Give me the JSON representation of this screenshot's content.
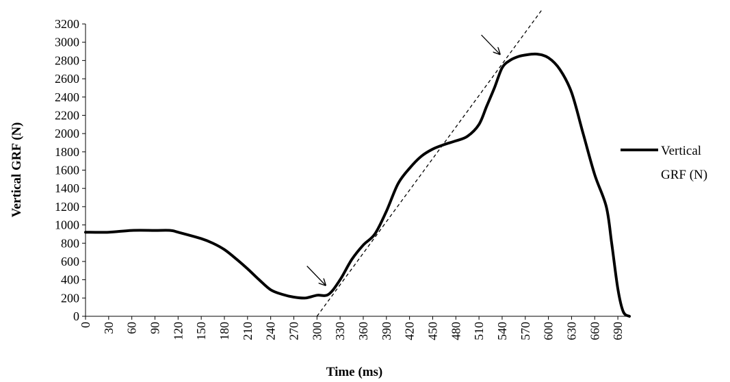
{
  "chart_data": {
    "type": "line",
    "title": "",
    "xlabel": "Time (ms)",
    "ylabel": "Vertical GRF (N)",
    "xlim": [
      0,
      705
    ],
    "ylim": [
      0,
      3200
    ],
    "x_ticks": [
      "0",
      "30",
      "60",
      "90",
      "120",
      "150",
      "180",
      "210",
      "240",
      "270",
      "300",
      "330",
      "360",
      "390",
      "420",
      "450",
      "480",
      "510",
      "540",
      "570",
      "600",
      "630",
      "660",
      "690"
    ],
    "y_ticks": [
      "0",
      "200",
      "400",
      "600",
      "800",
      "1000",
      "1200",
      "1400",
      "1600",
      "1800",
      "2000",
      "2200",
      "2400",
      "2600",
      "2800",
      "3000",
      "3200"
    ],
    "grid": false,
    "legend_position": "right",
    "legend_lines": [
      "Vertical",
      "GRF (N)"
    ],
    "color": "#000000",
    "series": [
      {
        "name": "Vertical GRF (N)",
        "x": [
          0,
          30,
          60,
          90,
          110,
          120,
          150,
          165,
          180,
          195,
          210,
          225,
          240,
          255,
          270,
          285,
          300,
          315,
          330,
          345,
          360,
          375,
          390,
          405,
          420,
          435,
          450,
          465,
          480,
          495,
          510,
          520,
          530,
          540,
          550,
          560,
          570,
          585,
          600,
          615,
          630,
          645,
          660,
          675,
          682,
          690,
          697,
          705
        ],
        "y": [
          920,
          920,
          940,
          940,
          940,
          920,
          850,
          800,
          730,
          630,
          520,
          400,
          290,
          240,
          210,
          200,
          230,
          240,
          400,
          620,
          780,
          900,
          1150,
          1450,
          1620,
          1750,
          1830,
          1880,
          1920,
          1970,
          2100,
          2300,
          2500,
          2720,
          2800,
          2840,
          2860,
          2870,
          2830,
          2700,
          2450,
          2000,
          1550,
          1200,
          800,
          300,
          50,
          0
        ]
      }
    ],
    "annotations": [
      {
        "type": "trend-line",
        "style": "dashed",
        "from": {
          "x": 300,
          "y": 0
        },
        "to": {
          "x": 592,
          "y": 3360
        }
      },
      {
        "type": "arrow",
        "points_to": {
          "x": 311,
          "y": 340
        }
      },
      {
        "type": "arrow",
        "points_to": {
          "x": 537,
          "y": 2870
        }
      }
    ]
  }
}
